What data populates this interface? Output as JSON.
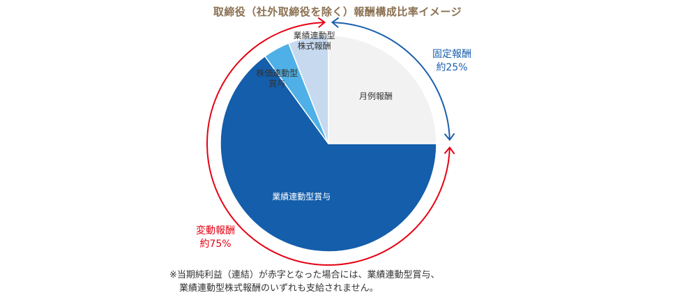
{
  "title": "取締役（社外取締役を除く）報酬構成比率イメージ",
  "chart_data": {
    "type": "pie",
    "slices": [
      {
        "label": "月例報酬",
        "value": 25,
        "color": "#f2f2f2",
        "text_color": "#333333"
      },
      {
        "label": "業績連動型賞与",
        "value": 65,
        "color": "#145eab",
        "text_color": "#ffffff"
      },
      {
        "label": "株価連動型\n賞与",
        "value": 4,
        "color": "#4eb0e6",
        "text_color": "#333333"
      },
      {
        "label": "業績連動型\n株式報酬",
        "value": 6,
        "color": "#c6d9ef",
        "text_color": "#333333"
      }
    ],
    "groups": [
      {
        "label": "固定報酬",
        "approx": "約25%",
        "color": "#1a5fad"
      },
      {
        "label": "変動報酬",
        "approx": "約75%",
        "color": "#e60012"
      }
    ]
  },
  "footnote": {
    "line1": "※当期純利益（連結）が赤字となった場合には、業績連動型賞与、",
    "line2": "業績連動型株式報酬のいずれも支給されません。"
  }
}
